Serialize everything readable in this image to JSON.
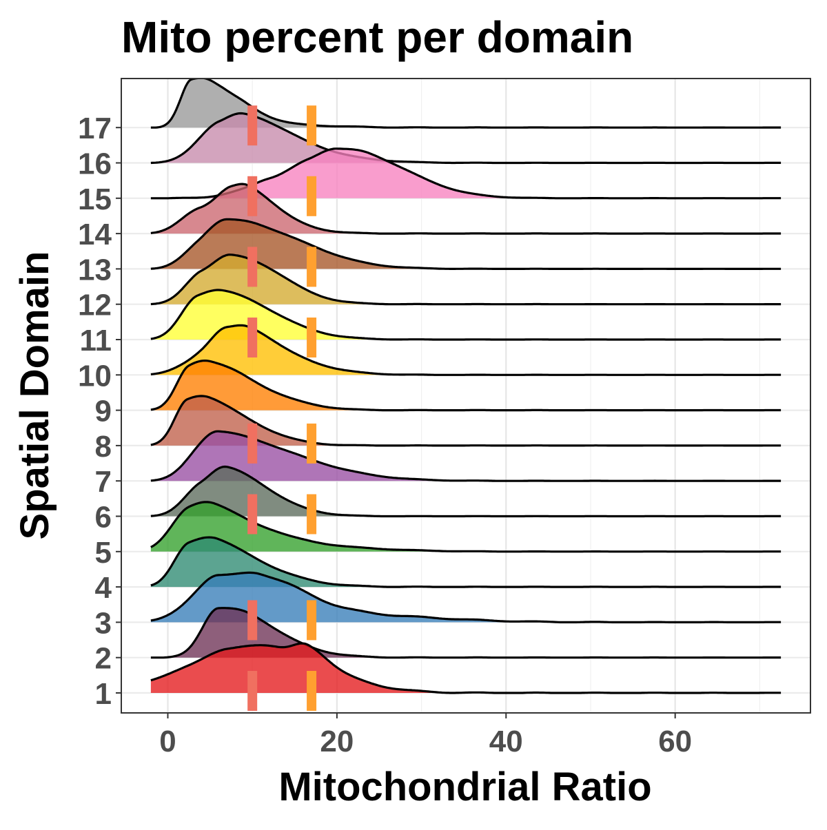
{
  "chart_data": {
    "type": "ridgeline",
    "title": "Mito percent per domain",
    "xlabel": "Mitochondrial Ratio",
    "ylabel": "Spatial Domain",
    "xlim": [
      -5.5,
      76
    ],
    "x_ticks": [
      0,
      20,
      40,
      60
    ],
    "x_minor_ticks": [
      10,
      30,
      50,
      70
    ],
    "categories": [
      "1",
      "2",
      "3",
      "4",
      "5",
      "6",
      "7",
      "8",
      "9",
      "10",
      "11",
      "12",
      "13",
      "14",
      "15",
      "16",
      "17"
    ],
    "density_x_range": [
      -2,
      72.5
    ],
    "grid": true,
    "series": [
      {
        "category": "1",
        "color": "#E41A1C",
        "peaks": [
          [
            2.5,
            5,
            0.2,
            0.35
          ],
          [
            7,
            3,
            0.25,
            0.5
          ],
          [
            13,
            3,
            0.18,
            0.55
          ],
          [
            16.5,
            1.5,
            0.15,
            0.25
          ]
        ],
        "tails": [
          [
            19,
            5,
            0.0,
            0.03
          ]
        ]
      },
      {
        "category": "2",
        "color": "#6E3256",
        "peaks": [
          [
            6,
            1.9,
            1.0,
            0.9
          ],
          [
            9.5,
            1.5,
            0.05,
            0.45
          ]
        ],
        "tails": []
      },
      {
        "category": "3",
        "color": "#377EB8",
        "peaks": [
          [
            3,
            3,
            0.08,
            0.3
          ],
          [
            6,
            2.5,
            0.4,
            0.85
          ],
          [
            11,
            2,
            0.1,
            0.4
          ],
          [
            15,
            2.5,
            0.05,
            0.3
          ]
        ],
        "tails": [
          [
            24,
            9,
            0.0,
            0.06
          ]
        ]
      },
      {
        "category": "4",
        "color": "#2E8B72",
        "peaks": [
          [
            2.5,
            1.8,
            0.8,
            0.8
          ],
          [
            6,
            2.5,
            0.35,
            0.7
          ]
        ],
        "tails": [
          [
            12,
            4,
            0.0,
            0.05
          ]
        ]
      },
      {
        "category": "5",
        "color": "#33A02C",
        "peaks": [
          [
            2.5,
            2.2,
            0.85,
            0.55
          ],
          [
            5.5,
            2.5,
            0.4,
            0.6
          ],
          [
            12,
            5,
            0.05,
            0.4
          ],
          [
            13.5,
            2.5,
            0.1,
            0.4
          ]
        ],
        "tails": [
          [
            22,
            6,
            0.0,
            0.04
          ]
        ]
      },
      {
        "category": "6",
        "color": "#5C6B5C",
        "peaks": [
          [
            3.8,
            2,
            0.8,
            0.85
          ],
          [
            7,
            2,
            0.8,
            0.6
          ]
        ],
        "tails": []
      },
      {
        "category": "7",
        "color": "#984EA3",
        "peaks": [
          [
            6,
            2.6,
            1.0,
            1.0
          ],
          [
            3.5,
            2,
            0.15,
            0.5
          ]
        ],
        "tails": []
      },
      {
        "category": "8",
        "color": "#C0604A",
        "peaks": [
          [
            2.3,
            1.5,
            1.0,
            1.0
          ],
          [
            5,
            2.5,
            0.4,
            0.55
          ]
        ],
        "tails": [
          [
            12,
            3,
            0.0,
            0.04
          ]
        ]
      },
      {
        "category": "9",
        "color": "#FF7F00",
        "peaks": [
          [
            2.5,
            1.5,
            0.9,
            0.9
          ],
          [
            5,
            2.5,
            0.5,
            0.6
          ],
          [
            9,
            2.5,
            0.15,
            0.4
          ]
        ],
        "tails": [
          [
            14,
            4,
            0.0,
            0.05
          ]
        ]
      },
      {
        "category": "10",
        "color": "#FFBF00",
        "peaks": [
          [
            7,
            2,
            0.9,
            0.95
          ],
          [
            4,
            2.5,
            0.4,
            0.5
          ],
          [
            9.5,
            1.5,
            0.2,
            0.4
          ]
        ],
        "tails": [
          [
            14,
            5,
            0.0,
            0.05
          ]
        ]
      },
      {
        "category": "11",
        "color": "#FFFF33",
        "peaks": [
          [
            3.5,
            2,
            1.0,
            1.0
          ],
          [
            6.5,
            2.5,
            0.4,
            0.6
          ]
        ],
        "tails": [
          [
            11,
            4,
            0.0,
            0.08
          ]
        ]
      },
      {
        "category": "12",
        "color": "#D4AA30",
        "peaks": [
          [
            4,
            2,
            0.85,
            0.9
          ],
          [
            7.5,
            2,
            0.65,
            0.75
          ]
        ],
        "tails": [
          [
            12,
            3.5,
            0.0,
            0.2
          ]
        ]
      },
      {
        "category": "13",
        "color": "#A65628",
        "peaks": [
          [
            3.5,
            2,
            0.35,
            0.55
          ],
          [
            7,
            2.5,
            0.9,
            0.9
          ],
          [
            11,
            3,
            0.18,
            0.45
          ]
        ],
        "tails": [
          [
            16,
            4,
            0.0,
            0.05
          ]
        ]
      },
      {
        "category": "14",
        "color": "#CC6670",
        "peaks": [
          [
            3.8,
            2.2,
            0.6,
            0.7
          ],
          [
            7.5,
            1.8,
            0.6,
            0.75
          ],
          [
            9.5,
            1.5,
            0.3,
            0.45
          ]
        ],
        "tails": []
      },
      {
        "category": "15",
        "color": "#F781BF",
        "peaks": [
          [
            9,
            2.5,
            0.12,
            0.4
          ],
          [
            12,
            2,
            0.22,
            0.5
          ],
          [
            16.5,
            2.5,
            0.4,
            0.7
          ],
          [
            20,
            2.5,
            0.5,
            0.8
          ],
          [
            24,
            3,
            0.2,
            0.4
          ]
        ],
        "tails": [
          [
            28,
            4,
            0.0,
            0.04
          ]
        ]
      },
      {
        "category": "16",
        "color": "#C68AAC",
        "peaks": [
          [
            6,
            2.5,
            1.0,
            0.95
          ],
          [
            9,
            2,
            0.4,
            0.6
          ]
        ],
        "tails": []
      },
      {
        "category": "17",
        "color": "#999999",
        "peaks": [
          [
            2.8,
            1.3,
            1.0,
            1.0
          ],
          [
            5,
            1.5,
            0.15,
            0.6
          ],
          [
            9.5,
            1.5,
            0.08,
            0.45
          ]
        ],
        "tails": [
          [
            16,
            5,
            0.0,
            0.04
          ]
        ]
      }
    ],
    "reference_lines": [
      {
        "x": 10,
        "color": "#F07060",
        "categories": [
          "1",
          "3",
          "6",
          "8",
          "11",
          "13",
          "15",
          "17"
        ]
      },
      {
        "x": 17,
        "color": "#FFA030",
        "categories": [
          "1",
          "3",
          "6",
          "8",
          "11",
          "13",
          "15",
          "17"
        ]
      }
    ]
  }
}
